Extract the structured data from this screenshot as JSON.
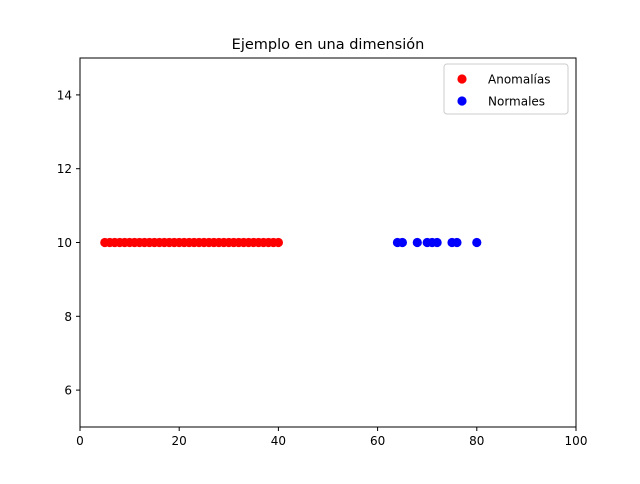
{
  "chart_data": {
    "type": "scatter",
    "title": "Ejemplo en una dimensión",
    "xlabel": "",
    "ylabel": "",
    "xlim": [
      0,
      100
    ],
    "ylim": [
      5,
      15
    ],
    "x_ticks": [
      0,
      20,
      40,
      60,
      80,
      100
    ],
    "y_ticks": [
      6,
      8,
      10,
      12,
      14
    ],
    "grid": false,
    "legend_position": "top-right",
    "series": [
      {
        "name": "Anomalías",
        "color": "#ff0000",
        "x": [
          5,
          6,
          7,
          8,
          9,
          10,
          11,
          12,
          13,
          14,
          15,
          16,
          17,
          18,
          19,
          20,
          21,
          22,
          23,
          24,
          25,
          26,
          27,
          28,
          29,
          30,
          31,
          32,
          33,
          34,
          35,
          36,
          37,
          38,
          39,
          40
        ],
        "y": [
          10,
          10,
          10,
          10,
          10,
          10,
          10,
          10,
          10,
          10,
          10,
          10,
          10,
          10,
          10,
          10,
          10,
          10,
          10,
          10,
          10,
          10,
          10,
          10,
          10,
          10,
          10,
          10,
          10,
          10,
          10,
          10,
          10,
          10,
          10,
          10
        ]
      },
      {
        "name": "Normales",
        "color": "#0000ff",
        "x": [
          64,
          65,
          68,
          70,
          71,
          72,
          75,
          76,
          80
        ],
        "y": [
          10,
          10,
          10,
          10,
          10,
          10,
          10,
          10,
          10
        ]
      }
    ]
  }
}
